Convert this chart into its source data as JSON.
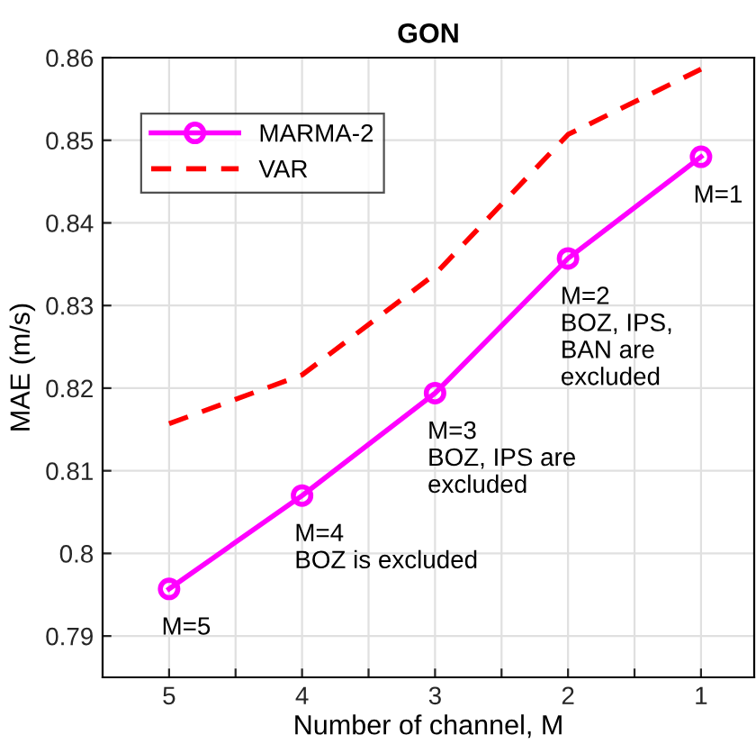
{
  "chart_data": {
    "type": "line",
    "title": "GON",
    "xlabel": "Number of channel, M",
    "ylabel": "MAE (m/s)",
    "x": [
      5,
      4,
      3,
      2,
      1
    ],
    "series": [
      {
        "name": "MARMA-2",
        "color": "#ff00ff",
        "values": [
          0.7957,
          0.807,
          0.8194,
          0.8357,
          0.848
        ],
        "marker": "circle",
        "line_style": "solid"
      },
      {
        "name": "VAR",
        "color": "#ff0000",
        "values": [
          0.8157,
          0.8216,
          0.8338,
          0.8507,
          0.8586
        ],
        "marker": "none",
        "line_style": "dashed"
      }
    ],
    "xlim": [
      5.5,
      0.6
    ],
    "xticks": [
      5,
      {
        "value": 4.5,
        "label": null
      },
      4,
      {
        "value": 3.5,
        "label": null
      },
      3,
      {
        "value": 2.5,
        "label": null
      },
      2,
      {
        "value": 1.5,
        "label": null
      },
      1
    ],
    "ylim": [
      0.785,
      0.86
    ],
    "yticks": [
      0.79,
      0.8,
      0.81,
      0.82,
      0.83,
      0.84,
      0.85,
      0.86
    ],
    "grid": true,
    "legend": "top left",
    "annotations": [
      {
        "text": "M=5",
        "x": 5,
        "y": 0.7957
      },
      {
        "text": "M=4\nBOZ is excluded",
        "x": 4,
        "y": 0.807
      },
      {
        "text": "M=3\nBOZ, IPS are\nexcluded",
        "x": 3,
        "y": 0.8194
      },
      {
        "text": "M=2\nBOZ, IPS,\nBAN are\nexcluded",
        "x": 2,
        "y": 0.8357
      },
      {
        "text": "M=1",
        "x": 1,
        "y": 0.848
      }
    ]
  }
}
